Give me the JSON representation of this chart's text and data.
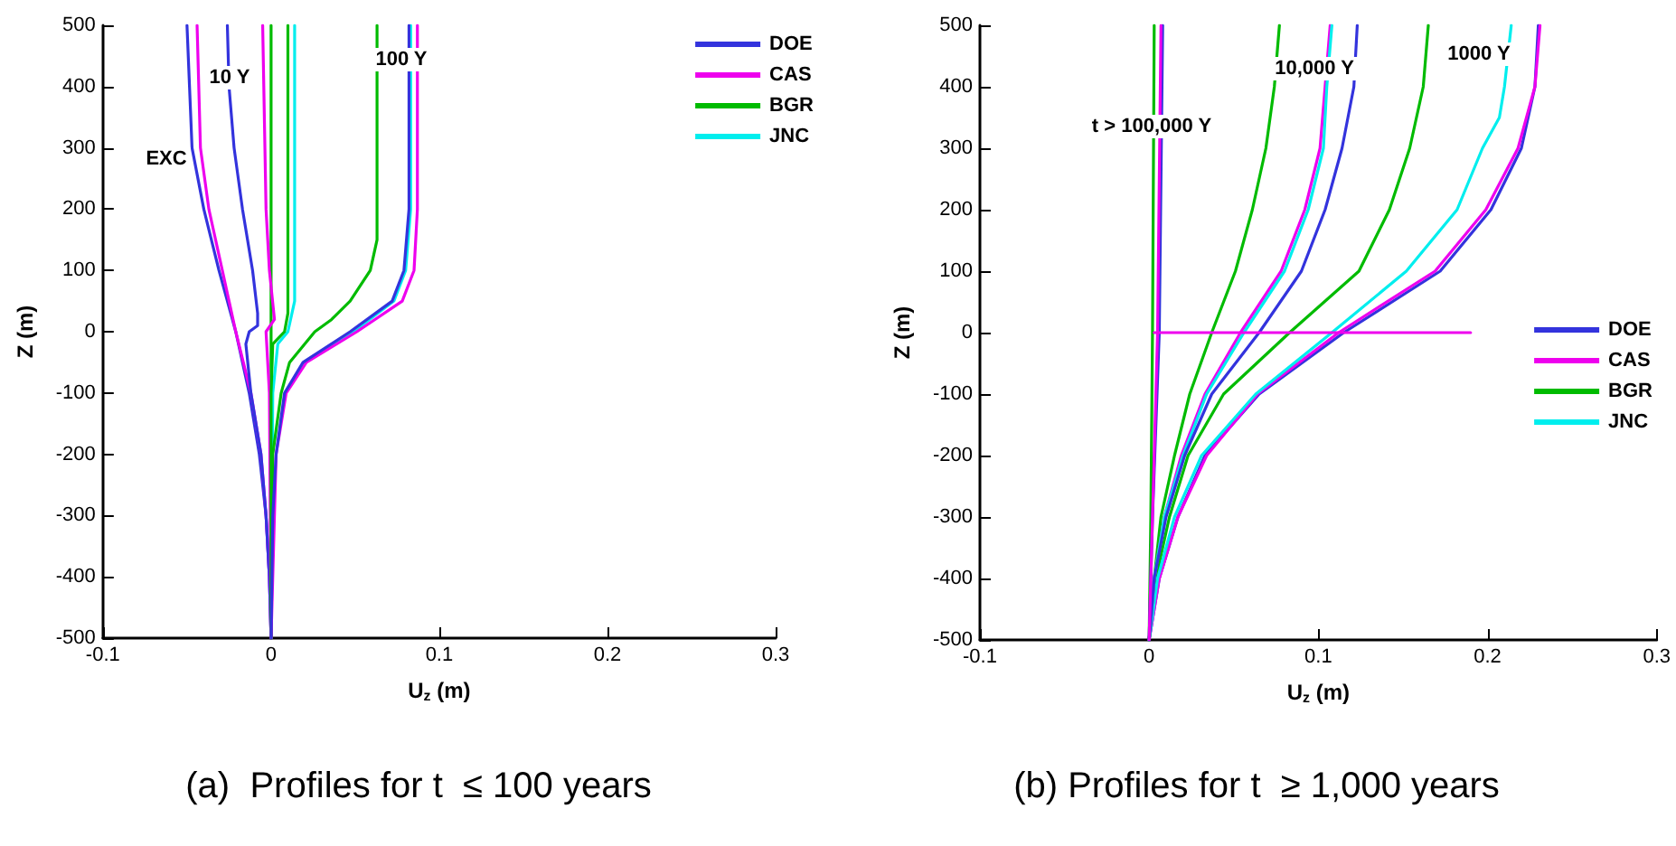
{
  "chart_data": [
    {
      "type": "line",
      "title": "(a)  Profiles for t  ≤ 100 years",
      "xlabel": "U$_{z}$ (m)",
      "ylabel": "Z (m)",
      "xlim": [
        -0.1,
        0.3
      ],
      "xticks": [
        -0.1,
        0,
        0.1,
        0.2,
        0.3
      ],
      "ylim": [
        -500,
        500
      ],
      "yticks": [
        -500,
        -400,
        -300,
        -200,
        -100,
        0,
        100,
        200,
        300,
        400,
        500
      ],
      "grid": false,
      "legend": "top right",
      "marker": "none",
      "line_style": "solid",
      "annotations": [
        "10 Y",
        "EXC",
        "100 Y"
      ],
      "series": [
        {
          "name": "DOE",
          "color": "#3333dd",
          "x": [
            -0.05,
            -0.047,
            -0.04,
            -0.031,
            -0.021,
            -0.013,
            -0.007,
            -0.003,
            -0.001,
            0
          ],
          "values": [
            500,
            300,
            200,
            100,
            0,
            -100,
            -200,
            -300,
            -400,
            -500
          ]
        },
        {
          "name": "CAS",
          "color": "#ee00ee",
          "x": [
            -0.044,
            -0.042,
            -0.037,
            -0.029,
            -0.021,
            -0.012,
            -0.006,
            -0.003,
            -0.001,
            0
          ],
          "values": [
            500,
            300,
            200,
            100,
            0,
            -100,
            -200,
            -300,
            -400,
            -500
          ]
        },
        {
          "name": "BGR",
          "color": "#00bb00",
          "x": [
            0,
            0,
            0,
            0
          ],
          "values": [
            500,
            0,
            -100,
            -500
          ]
        },
        {
          "name": "JNC",
          "color": "#00eeee",
          "x": [
            0.014,
            0.014,
            0.01,
            0.004,
            0.001,
            0
          ],
          "values": [
            500,
            50,
            0,
            -20,
            -100,
            -500
          ]
        },
        {
          "color": "#3333dd",
          "x": [
            -0.026,
            -0.025,
            -0.022,
            -0.017,
            -0.011,
            -0.008,
            -0.008,
            -0.013,
            -0.015,
            -0.012,
            -0.006,
            -0.003,
            -0.001,
            0
          ],
          "values": [
            500,
            400,
            300,
            200,
            100,
            30,
            10,
            0,
            -20,
            -100,
            -200,
            -300,
            -400,
            -500
          ]
        },
        {
          "color": "#ee00ee",
          "x": [
            -0.005,
            -0.003,
            -0.001,
            0.002,
            -0.003,
            -0.001,
            0
          ],
          "values": [
            500,
            200,
            100,
            20,
            0,
            -100,
            -500
          ]
        },
        {
          "color": "#00bb00",
          "x": [
            0.01,
            0.01,
            0.008,
            0.001,
            0,
            0
          ],
          "values": [
            500,
            30,
            0,
            -20,
            -100,
            -500
          ]
        },
        {
          "color": "#00bb00",
          "x": [
            0.063,
            0.063,
            0.063,
            0.059,
            0.047,
            0.036,
            0.026,
            0.011,
            0.006,
            0.001,
            0
          ],
          "values": [
            500,
            200,
            150,
            100,
            50,
            20,
            0,
            -50,
            -100,
            -200,
            -500
          ]
        },
        {
          "color": "#00eeee",
          "x": [
            0.083,
            0.083,
            0.08,
            0.073,
            0.049,
            0.02
          ],
          "values": [
            500,
            200,
            100,
            50,
            0,
            -50
          ]
        },
        {
          "color": "#ee00ee",
          "x": [
            0.087,
            0.087,
            0.085,
            0.078,
            0.051,
            0.021,
            0.009,
            0.003,
            0
          ],
          "values": [
            500,
            200,
            100,
            50,
            0,
            -50,
            -100,
            -200,
            -500
          ]
        },
        {
          "color": "#3333dd",
          "x": [
            0.082,
            0.082,
            0.079,
            0.072,
            0.047,
            0.019,
            0.008,
            0.003,
            0.001,
            0
          ],
          "values": [
            500,
            200,
            100,
            50,
            0,
            -50,
            -100,
            -200,
            -300,
            -500
          ]
        }
      ]
    },
    {
      "type": "line",
      "title": "(b) Profiles for t  ≥ 1,000 years",
      "xlabel": "U$_{z}$ (m)",
      "ylabel": "Z (m)",
      "xlim": [
        -0.1,
        0.3
      ],
      "xticks": [
        -0.1,
        0,
        0.1,
        0.2,
        0.3
      ],
      "ylim": [
        -500,
        500
      ],
      "yticks": [
        -500,
        -400,
        -300,
        -200,
        -100,
        0,
        100,
        200,
        300,
        400,
        500
      ],
      "grid": false,
      "legend": "right",
      "marker": "none",
      "line_style": "solid",
      "annotations": [
        "t > 100,000 Y",
        "10,000 Y",
        "1000 Y"
      ],
      "series": [
        {
          "name": "DOE",
          "color": "#3333dd",
          "x": [
            0.23,
            0.228,
            0.22,
            0.202,
            0.172,
            0.115,
            0.065,
            0.033,
            0.017,
            0.006,
            0
          ],
          "values": [
            500,
            400,
            300,
            200,
            100,
            0,
            -100,
            -200,
            -300,
            -400,
            -500
          ]
        },
        {
          "name": "CAS",
          "color": "#ee00ee",
          "x": [
            0.231,
            0.228,
            0.218,
            0.199,
            0.169,
            0.112,
            0.064,
            0.034,
            0.017,
            0.006,
            0
          ],
          "values": [
            500,
            400,
            300,
            200,
            100,
            0,
            -100,
            -200,
            -300,
            -400,
            -500
          ]
        },
        {
          "name": "BGR",
          "color": "#00bb00",
          "x": [
            0.165,
            0.162,
            0.154,
            0.142,
            0.124,
            0.083,
            0.044,
            0.023,
            0.012,
            0.004,
            0
          ],
          "values": [
            500,
            400,
            300,
            200,
            100,
            0,
            -100,
            -200,
            -300,
            -400,
            -500
          ]
        },
        {
          "name": "JNC",
          "color": "#00eeee",
          "x": [
            0.214,
            0.21,
            0.207,
            0.197,
            0.182,
            0.152,
            0.108,
            0.063,
            0.031,
            0.015,
            0.005,
            0
          ],
          "values": [
            500,
            400,
            350,
            300,
            200,
            100,
            0,
            -100,
            -200,
            -300,
            -400,
            -500
          ]
        },
        {
          "color": "#00bb00",
          "x": [
            0.077,
            0.074,
            0.069,
            0.061,
            0.051,
            0.037,
            0.024,
            0.015,
            0.007,
            0.003,
            0
          ],
          "values": [
            500,
            400,
            300,
            200,
            100,
            0,
            -100,
            -200,
            -300,
            -400,
            -500
          ]
        },
        {
          "color": "#ee00ee",
          "x": [
            0.107,
            0.104,
            0.101,
            0.092,
            0.078,
            0.054,
            0.033,
            0.019,
            0.009,
            0.003,
            0
          ],
          "values": [
            500,
            400,
            300,
            200,
            100,
            0,
            -100,
            -200,
            -300,
            -400,
            -500
          ]
        },
        {
          "color": "#00eeee",
          "x": [
            0.108,
            0.105,
            0.103,
            0.094,
            0.08,
            0.056,
            0.034,
            0.02,
            0.009,
            0.003,
            0
          ],
          "values": [
            500,
            400,
            300,
            200,
            100,
            0,
            -100,
            -200,
            -300,
            -400,
            -500
          ]
        },
        {
          "color": "#3333dd",
          "x": [
            0.123,
            0.121,
            0.114,
            0.104,
            0.09,
            0.065,
            0.037,
            0.021,
            0.01,
            0.003,
            0
          ],
          "values": [
            500,
            400,
            300,
            200,
            100,
            0,
            -100,
            -200,
            -300,
            -400,
            -500
          ]
        },
        {
          "color": "#00bb00",
          "x": [
            0.003,
            0.002,
            0.001,
            0
          ],
          "values": [
            500,
            0,
            -300,
            -500
          ]
        },
        {
          "color": "#3333dd",
          "x": [
            0.008,
            0.006,
            0.002,
            0
          ],
          "values": [
            500,
            0,
            -300,
            -500
          ]
        },
        {
          "color": "#ee00ee",
          "x": [
            0.007,
            0.005,
            0.002,
            0
          ],
          "values": [
            500,
            0,
            -300,
            -500
          ]
        },
        {
          "color": "#ee00ee",
          "x": [
            0.003,
            0.19
          ],
          "values": [
            0,
            0
          ]
        }
      ]
    }
  ]
}
